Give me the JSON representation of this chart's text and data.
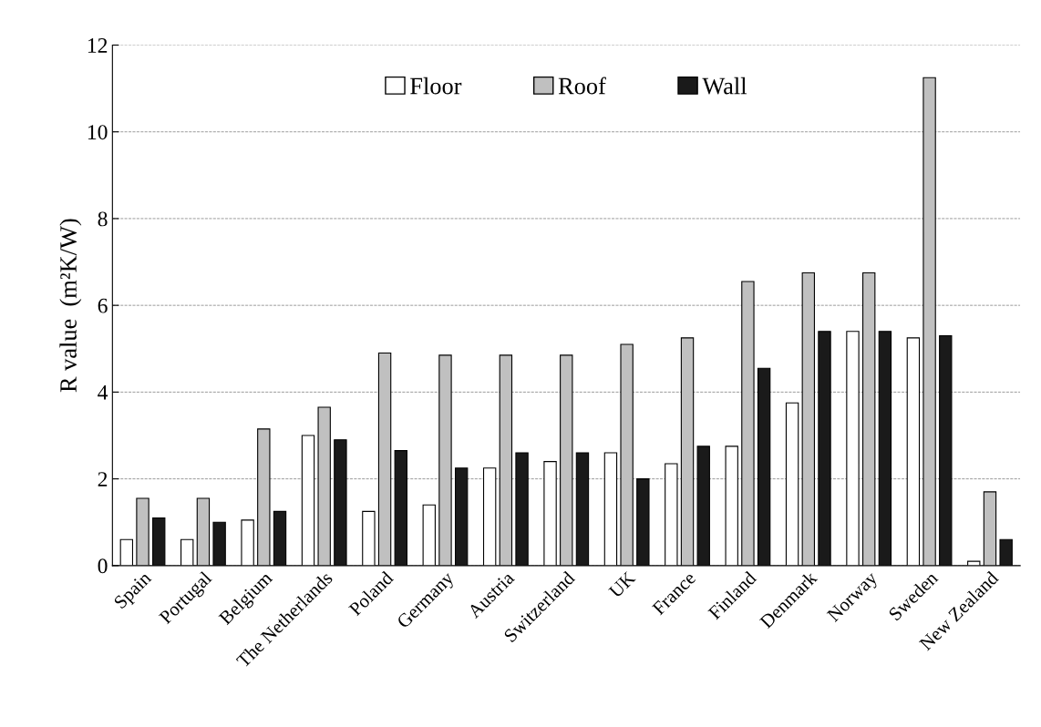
{
  "chart_data": {
    "type": "bar",
    "ylabel": "R value  (m²K/W)",
    "categories": [
      "Spain",
      "Portugal",
      "Belgium",
      "The Netherlands",
      "Poland",
      "Germany",
      "Austria",
      "Switzerland",
      "UK",
      "France",
      "Finland",
      "Denmark",
      "Norway",
      "Sweden",
      "New Zealand"
    ],
    "series": [
      {
        "name": "Floor",
        "color": "#ffffff",
        "values": [
          0.6,
          0.6,
          1.05,
          3.0,
          1.25,
          1.4,
          2.25,
          2.4,
          2.6,
          2.35,
          2.75,
          3.75,
          5.4,
          5.25,
          0.1
        ]
      },
      {
        "name": "Roof",
        "color": "#c0c0c0",
        "values": [
          1.55,
          1.55,
          3.15,
          3.65,
          4.9,
          4.85,
          4.85,
          4.85,
          5.1,
          5.25,
          6.55,
          6.75,
          6.75,
          11.25,
          1.7
        ]
      },
      {
        "name": "Wall",
        "color": "#1a1a1a",
        "values": [
          1.1,
          1.0,
          1.25,
          2.9,
          2.65,
          2.25,
          2.6,
          2.6,
          2.0,
          2.75,
          4.55,
          5.4,
          5.4,
          5.3,
          0.6
        ]
      }
    ],
    "ylim": [
      0,
      12
    ],
    "yticks": [
      0,
      2,
      4,
      6,
      8,
      10,
      12
    ],
    "grid": "y",
    "legend": "top"
  }
}
